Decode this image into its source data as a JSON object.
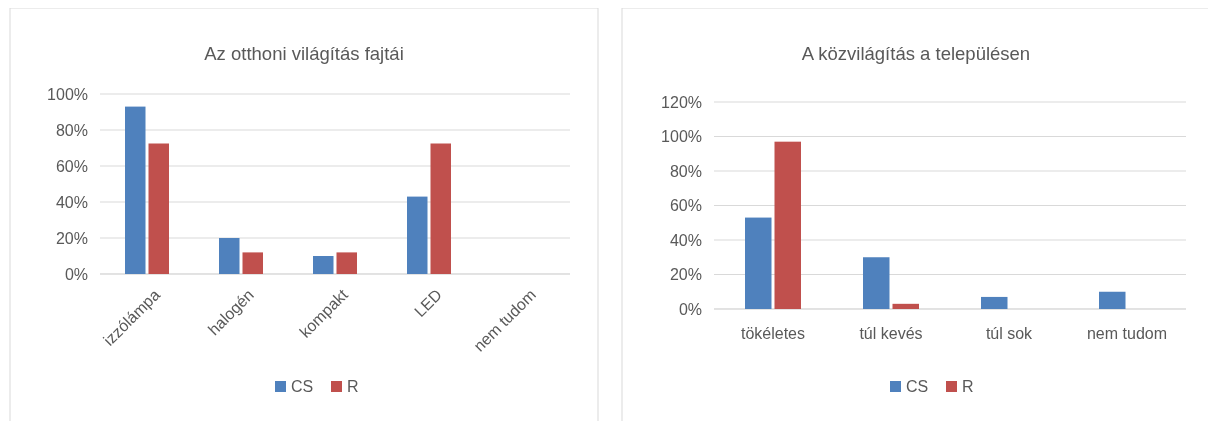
{
  "chart_data": [
    {
      "type": "bar",
      "title": "Az otthoni világítás fajtái",
      "categories": [
        "izzólámpa",
        "halogén",
        "kompakt",
        "LED",
        "nem tudom"
      ],
      "series": [
        {
          "name": "CS",
          "color": "#4f81bd",
          "values": [
            93,
            20,
            10,
            43,
            0
          ]
        },
        {
          "name": "R",
          "color": "#c0504d",
          "values": [
            72.5,
            12,
            12,
            72.5,
            0
          ]
        }
      ],
      "ylim": [
        0,
        100
      ],
      "yticks": [
        {
          "value": 0,
          "label": "0%"
        },
        {
          "value": 20,
          "label": "20%"
        },
        {
          "value": 40,
          "label": "40%"
        },
        {
          "value": 60,
          "label": "60%"
        },
        {
          "value": 80,
          "label": "80%"
        },
        {
          "value": 100,
          "label": "100%"
        }
      ],
      "grid": "y",
      "legend": "bottom"
    },
    {
      "type": "bar",
      "title": "A közvilágítás a településen",
      "categories": [
        "tökéletes",
        "túl kevés",
        "túl sok",
        "nem tudom"
      ],
      "series": [
        {
          "name": "CS",
          "color": "#4f81bd",
          "values": [
            53,
            30,
            7,
            10
          ]
        },
        {
          "name": "R",
          "color": "#c0504d",
          "values": [
            97,
            3,
            0,
            0
          ]
        }
      ],
      "ylim": [
        0,
        120
      ],
      "yticks": [
        {
          "value": 0,
          "label": "0%"
        },
        {
          "value": 20,
          "label": "20%"
        },
        {
          "value": 40,
          "label": "40%"
        },
        {
          "value": 60,
          "label": "60%"
        },
        {
          "value": 80,
          "label": "80%"
        },
        {
          "value": 100,
          "label": "100%"
        },
        {
          "value": 120,
          "label": "120%"
        }
      ],
      "grid": "y",
      "legend": "bottom"
    }
  ]
}
